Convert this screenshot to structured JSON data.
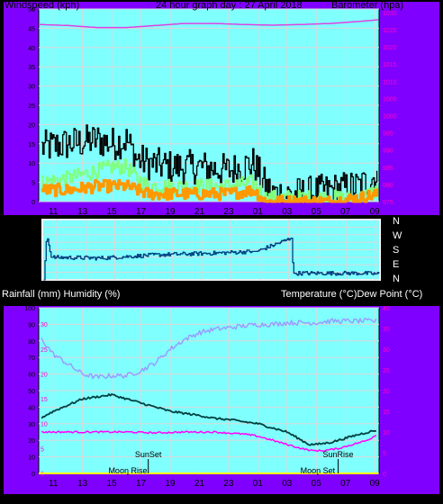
{
  "header": {
    "left_label": "Windspeed (kph)",
    "center_label": "24 hour graph day : 27 April 2018",
    "right_label": "Barometer (hpa)"
  },
  "mid": {
    "left_label": "Rainfall (mm)  Humidity (%)",
    "right_label": "Temperature (°C)Dew Point (°C)"
  },
  "wind_dir_labels": [
    "N",
    "W",
    "S",
    "E",
    "N"
  ],
  "colors": {
    "purple": "#8000ff",
    "plot_bg": "#80ffff",
    "grid": "#d8d8d8",
    "wind_black": "#000000",
    "wind_green": "#80ff80",
    "wind_orange": "#ff9900",
    "barometer": "#e040e0",
    "direction": "#004080",
    "humidity": "#9999ff",
    "temperature": "#004040",
    "dewpoint": "#ff00ff",
    "rainfall": "#ffff00",
    "right_axis_text": "#ff00cc"
  },
  "chart_data": [
    {
      "type": "line",
      "title": "24 hour graph day : 27 April 2018",
      "x_ticks": [
        "11",
        "13",
        "15",
        "17",
        "19",
        "21",
        "23",
        "01",
        "03",
        "05",
        "07",
        "09"
      ],
      "x_range_hours": [
        10,
        33.3
      ],
      "y_left": {
        "label": "Windspeed (kph)",
        "ticks": [
          0,
          5,
          10,
          15,
          20,
          25,
          30,
          35,
          40,
          45,
          50
        ],
        "range": [
          0,
          50
        ]
      },
      "y_right": {
        "label": "Barometer (hpa)",
        "ticks": [
          975,
          980,
          985,
          990,
          995,
          1000,
          1005,
          1010,
          1015,
          1020,
          1025,
          1030
        ],
        "range": [
          975,
          1031
        ]
      },
      "series": [
        {
          "key": "gust",
          "style": "noisy-step",
          "x": [
            10.2,
            12,
            14,
            15,
            16,
            16.7,
            17.5,
            19,
            21,
            23,
            24.7,
            25.5,
            26,
            28,
            30,
            32,
            33.2
          ],
          "values": [
            14,
            15,
            16,
            15,
            16,
            11,
            10,
            9,
            9,
            8,
            10,
            4,
            2,
            2,
            3,
            4,
            7
          ]
        },
        {
          "key": "average",
          "style": "noisy-step",
          "x": [
            10.2,
            12,
            14,
            15,
            16,
            16.7,
            17.5,
            19,
            21,
            23,
            24.7,
            25.5,
            26,
            28,
            30,
            32,
            33.2
          ],
          "values": [
            5,
            6,
            8,
            9,
            9,
            6,
            4,
            4,
            4,
            4,
            5,
            1,
            1,
            1,
            1,
            1,
            3
          ]
        },
        {
          "key": "wind_low",
          "style": "noisy-step",
          "x": [
            10.2,
            12,
            14,
            15,
            16,
            16.7,
            17.5,
            19,
            21,
            23,
            24.7,
            25.5,
            26,
            28,
            30,
            32,
            33.2
          ],
          "values": [
            3,
            3,
            4,
            4,
            4,
            3,
            2,
            2,
            2,
            2,
            3,
            0,
            0,
            0,
            0,
            1,
            2
          ]
        },
        {
          "key": "barometer",
          "axis": "right",
          "style": "smooth",
          "x": [
            10,
            12,
            14,
            16,
            18,
            20,
            22,
            24,
            26,
            28,
            30,
            32,
            33.3
          ],
          "values": [
            1026.5,
            1026.2,
            1025.6,
            1025.6,
            1026.2,
            1026.8,
            1026.8,
            1026.5,
            1026.3,
            1026.5,
            1026.8,
            1027.4,
            1027.9
          ]
        }
      ]
    },
    {
      "type": "line",
      "title": "",
      "x_range_hours": [
        10,
        33.3
      ],
      "y_left": {
        "ticks": [
          0,
          45,
          90,
          135,
          180,
          225,
          270,
          315,
          360
        ],
        "range": [
          0,
          360
        ]
      },
      "series": [
        {
          "key": "direction",
          "style": "noisy-step",
          "x": [
            10.1,
            10.3,
            10.6,
            14,
            18,
            22,
            24.5,
            24.8,
            27.2,
            27.3,
            32,
            33.3
          ],
          "values": [
            0,
            270,
            135,
            130,
            150,
            160,
            170,
            170,
            250,
            40,
            40,
            35
          ]
        }
      ]
    },
    {
      "type": "line",
      "title": "",
      "x_ticks": [
        "11",
        "13",
        "15",
        "17",
        "19",
        "21",
        "23",
        "01",
        "03",
        "05",
        "07",
        "09"
      ],
      "x_range_hours": [
        10,
        33.3
      ],
      "y_left": {
        "label": "Rainfall (mm)  Humidity (%)",
        "ticks": [
          0,
          10,
          20,
          30,
          40,
          50,
          60,
          70,
          80,
          90,
          100
        ],
        "range": [
          0,
          100
        ]
      },
      "y_left_inner": {
        "label": "Rainfall (mm)",
        "ticks": [
          0,
          5,
          10,
          15,
          20,
          25,
          30
        ],
        "range": [
          0,
          33.3
        ]
      },
      "y_right": {
        "label": "Temperature (°C)Dew Point (°C)",
        "ticks": [
          0,
          5,
          10,
          15,
          20,
          25,
          30,
          35,
          40
        ],
        "range": [
          0,
          40
        ]
      },
      "annotations": [
        {
          "label": "SunSet",
          "x": 17.5
        },
        {
          "label": "Moon Rise",
          "x": 16.1
        },
        {
          "label": "SunRise",
          "x": 30.5
        },
        {
          "label": "Moon Set",
          "x": 29.1
        }
      ],
      "series": [
        {
          "key": "humidity",
          "axis": "left",
          "style": "noisy",
          "x": [
            10.2,
            11,
            12,
            13,
            14,
            15,
            16,
            17,
            18,
            19,
            20,
            21,
            22,
            23,
            24,
            25,
            26,
            27,
            28,
            29,
            30,
            31,
            32,
            33.2
          ],
          "values": [
            81,
            72,
            66,
            60,
            58,
            59,
            59,
            62,
            67,
            75,
            81,
            85,
            87,
            88,
            89,
            90,
            90,
            91,
            91,
            91,
            92,
            92,
            92,
            92
          ]
        },
        {
          "key": "temperature",
          "axis": "right",
          "style": "noisy",
          "x": [
            10.2,
            11,
            12,
            13,
            14,
            15,
            16,
            17,
            18,
            19,
            20,
            21,
            22,
            23,
            24,
            25,
            26,
            27,
            28,
            28.5,
            29,
            30,
            31,
            32,
            33.2
          ],
          "values": [
            13.5,
            15,
            16.5,
            18,
            18.5,
            19,
            18,
            17,
            16,
            15,
            14.5,
            14,
            13.3,
            13,
            12.5,
            12,
            11,
            10,
            8,
            7,
            7,
            7.5,
            8.5,
            9.5,
            10.5
          ]
        },
        {
          "key": "dewpoint",
          "axis": "right",
          "style": "noisy",
          "x": [
            10.2,
            12,
            14,
            16,
            18,
            20,
            22,
            24,
            25,
            26,
            27,
            28,
            28.7,
            29.5,
            30.5,
            31.5,
            32.5,
            33.2
          ],
          "values": [
            10,
            10,
            10,
            10,
            9.8,
            10,
            10,
            9.5,
            9,
            8,
            7,
            6,
            5.5,
            5.5,
            6,
            7,
            8,
            9.5
          ]
        },
        {
          "key": "rainfall",
          "axis": "left_inner",
          "style": "line",
          "x": [
            10,
            33.3
          ],
          "values": [
            0,
            0
          ]
        }
      ]
    }
  ]
}
